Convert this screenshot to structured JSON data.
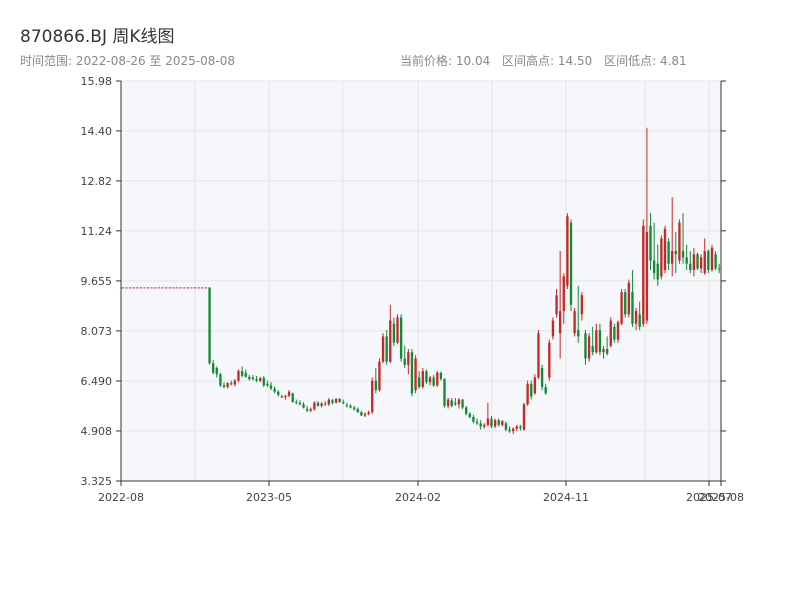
{
  "header": {
    "title": "870866.BJ 周K线图",
    "range_text": "时间范围: 2022-08-26 至 2025-08-08",
    "current_price_text": "当前价格: 10.04",
    "high_text": "区间高点: 14.50",
    "low_text": "区间低点: 4.81"
  },
  "colors": {
    "up": "#c62828",
    "down": "#138a36",
    "plot_bg": "#f5f7fa",
    "grid": "#e3e6ea",
    "axis": "#333333"
  },
  "chart_data": {
    "type": "candlestick",
    "ylim": [
      3.325,
      15.98
    ],
    "y_ticks": [
      "3.325",
      "4.908",
      "6.490",
      "8.073",
      "9.655",
      "11.24",
      "12.82",
      "14.40",
      "15.98"
    ],
    "x_ticks": [
      "2022-08",
      "2023-05",
      "2024-02",
      "2024-11",
      "2025-07",
      "2025-08"
    ],
    "grid": true,
    "candles": [
      [
        9.45,
        9.45,
        9.45,
        9.45
      ],
      [
        9.45,
        9.45,
        9.45,
        9.45
      ],
      [
        9.45,
        9.45,
        9.45,
        9.45
      ],
      [
        9.45,
        9.45,
        9.45,
        9.45
      ],
      [
        9.45,
        9.45,
        9.45,
        9.45
      ],
      [
        9.45,
        9.45,
        9.45,
        9.45
      ],
      [
        9.45,
        9.45,
        9.45,
        9.45
      ],
      [
        9.45,
        9.45,
        9.45,
        9.45
      ],
      [
        9.45,
        9.45,
        9.45,
        9.45
      ],
      [
        9.45,
        9.45,
        9.45,
        9.45
      ],
      [
        9.45,
        9.45,
        9.45,
        9.45
      ],
      [
        9.45,
        9.45,
        9.45,
        9.45
      ],
      [
        9.45,
        9.45,
        9.45,
        9.45
      ],
      [
        9.45,
        9.45,
        9.45,
        9.45
      ],
      [
        9.45,
        9.45,
        9.45,
        9.45
      ],
      [
        9.45,
        9.45,
        9.45,
        9.45
      ],
      [
        9.45,
        9.45,
        9.45,
        9.45
      ],
      [
        9.45,
        9.45,
        9.45,
        9.45
      ],
      [
        9.45,
        9.45,
        9.45,
        9.45
      ],
      [
        9.45,
        9.45,
        9.45,
        9.45
      ],
      [
        9.45,
        9.45,
        9.45,
        9.45
      ],
      [
        9.45,
        9.45,
        9.45,
        9.45
      ],
      [
        9.45,
        9.45,
        9.45,
        9.45
      ],
      [
        9.45,
        9.45,
        9.45,
        9.45
      ],
      [
        9.45,
        9.45,
        7.0,
        7.05
      ],
      [
        7.05,
        7.15,
        6.7,
        6.75
      ],
      [
        6.9,
        6.95,
        6.6,
        6.7
      ],
      [
        6.7,
        6.75,
        6.3,
        6.35
      ],
      [
        6.35,
        6.45,
        6.25,
        6.3
      ],
      [
        6.3,
        6.45,
        6.25,
        6.42
      ],
      [
        6.42,
        6.5,
        6.35,
        6.38
      ],
      [
        6.38,
        6.55,
        6.32,
        6.5
      ],
      [
        6.5,
        6.85,
        6.45,
        6.8
      ],
      [
        6.8,
        6.95,
        6.6,
        6.65
      ],
      [
        6.75,
        6.85,
        6.6,
        6.62
      ],
      [
        6.62,
        6.68,
        6.5,
        6.55
      ],
      [
        6.6,
        6.68,
        6.5,
        6.55
      ],
      [
        6.55,
        6.65,
        6.45,
        6.5
      ],
      [
        6.5,
        6.62,
        6.45,
        6.58
      ],
      [
        6.58,
        6.65,
        6.3,
        6.35
      ],
      [
        6.4,
        6.5,
        6.3,
        6.35
      ],
      [
        6.35,
        6.45,
        6.2,
        6.25
      ],
      [
        6.25,
        6.32,
        6.1,
        6.15
      ],
      [
        6.15,
        6.2,
        6.0,
        6.05
      ],
      [
        6.0,
        6.05,
        5.95,
        6.0
      ],
      [
        5.98,
        6.05,
        5.9,
        6.02
      ],
      [
        6.02,
        6.2,
        5.98,
        6.15
      ],
      [
        6.1,
        6.12,
        5.8,
        5.82
      ],
      [
        5.82,
        5.9,
        5.75,
        5.8
      ],
      [
        5.8,
        5.88,
        5.72,
        5.75
      ],
      [
        5.75,
        5.82,
        5.62,
        5.65
      ],
      [
        5.6,
        5.7,
        5.5,
        5.55
      ],
      [
        5.55,
        5.65,
        5.5,
        5.6
      ],
      [
        5.6,
        5.85,
        5.55,
        5.8
      ],
      [
        5.8,
        5.85,
        5.68,
        5.7
      ],
      [
        5.7,
        5.82,
        5.65,
        5.78
      ],
      [
        5.78,
        5.85,
        5.7,
        5.75
      ],
      [
        5.75,
        5.95,
        5.7,
        5.9
      ],
      [
        5.88,
        5.92,
        5.75,
        5.8
      ],
      [
        5.8,
        5.95,
        5.78,
        5.92
      ],
      [
        5.92,
        5.95,
        5.8,
        5.82
      ],
      [
        5.82,
        5.9,
        5.75,
        5.78
      ],
      [
        5.72,
        5.8,
        5.65,
        5.7
      ],
      [
        5.7,
        5.75,
        5.62,
        5.65
      ],
      [
        5.65,
        5.7,
        5.55,
        5.6
      ],
      [
        5.6,
        5.65,
        5.48,
        5.5
      ],
      [
        5.5,
        5.55,
        5.38,
        5.4
      ],
      [
        5.4,
        5.5,
        5.35,
        5.45
      ],
      [
        5.45,
        5.55,
        5.4,
        5.5
      ],
      [
        5.5,
        6.6,
        5.45,
        6.5
      ],
      [
        6.5,
        6.9,
        6.1,
        6.2
      ],
      [
        6.2,
        7.2,
        6.15,
        7.1
      ],
      [
        7.1,
        8.0,
        7.05,
        7.9
      ],
      [
        7.9,
        8.1,
        7.0,
        7.1
      ],
      [
        7.1,
        8.9,
        7.05,
        8.4
      ],
      [
        8.3,
        8.5,
        7.6,
        7.7
      ],
      [
        7.7,
        8.6,
        7.65,
        8.5
      ],
      [
        8.5,
        8.6,
        7.1,
        7.2
      ],
      [
        7.2,
        7.6,
        6.9,
        7.0
      ],
      [
        7.0,
        7.5,
        6.7,
        7.4
      ],
      [
        7.4,
        7.5,
        6.0,
        6.1
      ],
      [
        6.2,
        7.3,
        6.1,
        7.2
      ],
      [
        6.6,
        6.8,
        6.25,
        6.3
      ],
      [
        6.3,
        6.9,
        6.25,
        6.8
      ],
      [
        6.8,
        6.85,
        6.4,
        6.45
      ],
      [
        6.45,
        6.65,
        6.35,
        6.6
      ],
      [
        6.6,
        6.68,
        6.3,
        6.35
      ],
      [
        6.35,
        6.8,
        6.3,
        6.75
      ],
      [
        6.75,
        6.78,
        6.5,
        6.55
      ],
      [
        6.55,
        6.58,
        5.65,
        5.7
      ],
      [
        5.7,
        5.95,
        5.62,
        5.9
      ],
      [
        5.88,
        5.95,
        5.65,
        5.7
      ],
      [
        5.8,
        5.95,
        5.7,
        5.75
      ],
      [
        5.75,
        5.95,
        5.62,
        5.9
      ],
      [
        5.9,
        5.92,
        5.6,
        5.65
      ],
      [
        5.65,
        5.7,
        5.4,
        5.45
      ],
      [
        5.45,
        5.5,
        5.3,
        5.35
      ],
      [
        5.35,
        5.42,
        5.15,
        5.2
      ],
      [
        5.2,
        5.3,
        5.1,
        5.15
      ],
      [
        5.15,
        5.25,
        4.95,
        5.05
      ],
      [
        5.05,
        5.15,
        4.98,
        5.1
      ],
      [
        5.1,
        5.8,
        5.05,
        5.3
      ],
      [
        5.3,
        5.38,
        5.0,
        5.05
      ],
      [
        5.05,
        5.3,
        5.0,
        5.25
      ],
      [
        5.25,
        5.3,
        5.05,
        5.1
      ],
      [
        5.1,
        5.25,
        5.05,
        5.22
      ],
      [
        5.15,
        5.2,
        4.9,
        4.95
      ],
      [
        4.95,
        5.05,
        4.85,
        4.9
      ],
      [
        4.9,
        5.02,
        4.81,
        4.98
      ],
      [
        4.98,
        5.1,
        4.9,
        5.05
      ],
      [
        5.05,
        5.1,
        4.92,
        5.0
      ],
      [
        4.95,
        5.8,
        4.92,
        5.75
      ],
      [
        5.75,
        6.5,
        5.7,
        6.4
      ],
      [
        6.4,
        6.5,
        5.9,
        6.0
      ],
      [
        6.1,
        6.7,
        6.05,
        6.6
      ],
      [
        6.6,
        8.1,
        6.55,
        8.0
      ],
      [
        6.9,
        7.0,
        6.2,
        6.3
      ],
      [
        6.3,
        6.4,
        6.05,
        6.1
      ],
      [
        6.6,
        7.8,
        6.5,
        7.7
      ],
      [
        7.9,
        8.5,
        7.8,
        8.4
      ],
      [
        8.6,
        9.4,
        8.5,
        9.2
      ],
      [
        8.0,
        10.6,
        7.2,
        8.7
      ],
      [
        8.7,
        9.9,
        8.3,
        9.8
      ],
      [
        9.5,
        11.8,
        9.4,
        11.7
      ],
      [
        11.5,
        11.6,
        8.7,
        8.9
      ],
      [
        8.0,
        8.8,
        7.9,
        8.7
      ],
      [
        8.1,
        9.5,
        7.7,
        7.9
      ],
      [
        8.6,
        9.3,
        8.4,
        9.2
      ],
      [
        8.0,
        8.1,
        7.0,
        7.2
      ],
      [
        7.2,
        8.0,
        7.1,
        7.9
      ],
      [
        7.6,
        8.2,
        7.3,
        7.4
      ],
      [
        7.4,
        8.3,
        7.35,
        8.1
      ],
      [
        8.1,
        8.3,
        7.3,
        7.4
      ],
      [
        7.4,
        7.6,
        7.2,
        7.5
      ],
      [
        7.5,
        7.9,
        7.3,
        7.35
      ],
      [
        7.6,
        8.5,
        7.55,
        8.4
      ],
      [
        8.2,
        8.3,
        7.7,
        7.8
      ],
      [
        7.8,
        8.4,
        7.7,
        8.35
      ],
      [
        8.3,
        9.4,
        8.25,
        9.3
      ],
      [
        9.3,
        9.4,
        8.5,
        8.6
      ],
      [
        8.6,
        9.7,
        8.5,
        9.6
      ],
      [
        9.3,
        10.0,
        8.2,
        8.3
      ],
      [
        8.3,
        8.8,
        8.1,
        8.7
      ],
      [
        8.6,
        9.0,
        8.1,
        8.2
      ],
      [
        8.3,
        11.6,
        8.2,
        11.4
      ],
      [
        8.4,
        14.5,
        8.3,
        11.2
      ],
      [
        11.4,
        11.8,
        10.0,
        10.3
      ],
      [
        10.3,
        11.5,
        9.7,
        9.9
      ],
      [
        10.2,
        10.8,
        9.5,
        9.7
      ],
      [
        9.8,
        11.1,
        9.7,
        11.0
      ],
      [
        10.0,
        11.4,
        9.9,
        11.3
      ],
      [
        10.9,
        11.0,
        10.0,
        10.2
      ],
      [
        10.2,
        12.3,
        9.8,
        10.6
      ],
      [
        10.6,
        11.2,
        9.9,
        10.5
      ],
      [
        10.3,
        11.6,
        10.2,
        11.5
      ],
      [
        10.6,
        11.8,
        10.2,
        10.4
      ],
      [
        10.4,
        10.8,
        10.0,
        10.2
      ],
      [
        10.2,
        10.6,
        9.9,
        10.0
      ],
      [
        10.0,
        10.7,
        9.8,
        10.5
      ],
      [
        10.5,
        10.55,
        10.0,
        10.05
      ],
      [
        10.05,
        10.5,
        9.9,
        10.4
      ],
      [
        9.9,
        11.0,
        9.85,
        10.6
      ],
      [
        10.6,
        10.65,
        9.9,
        10.0
      ],
      [
        10.0,
        10.8,
        9.95,
        10.7
      ],
      [
        10.5,
        10.6,
        10.0,
        10.05
      ],
      [
        10.05,
        10.2,
        9.9,
        10.04
      ]
    ]
  }
}
